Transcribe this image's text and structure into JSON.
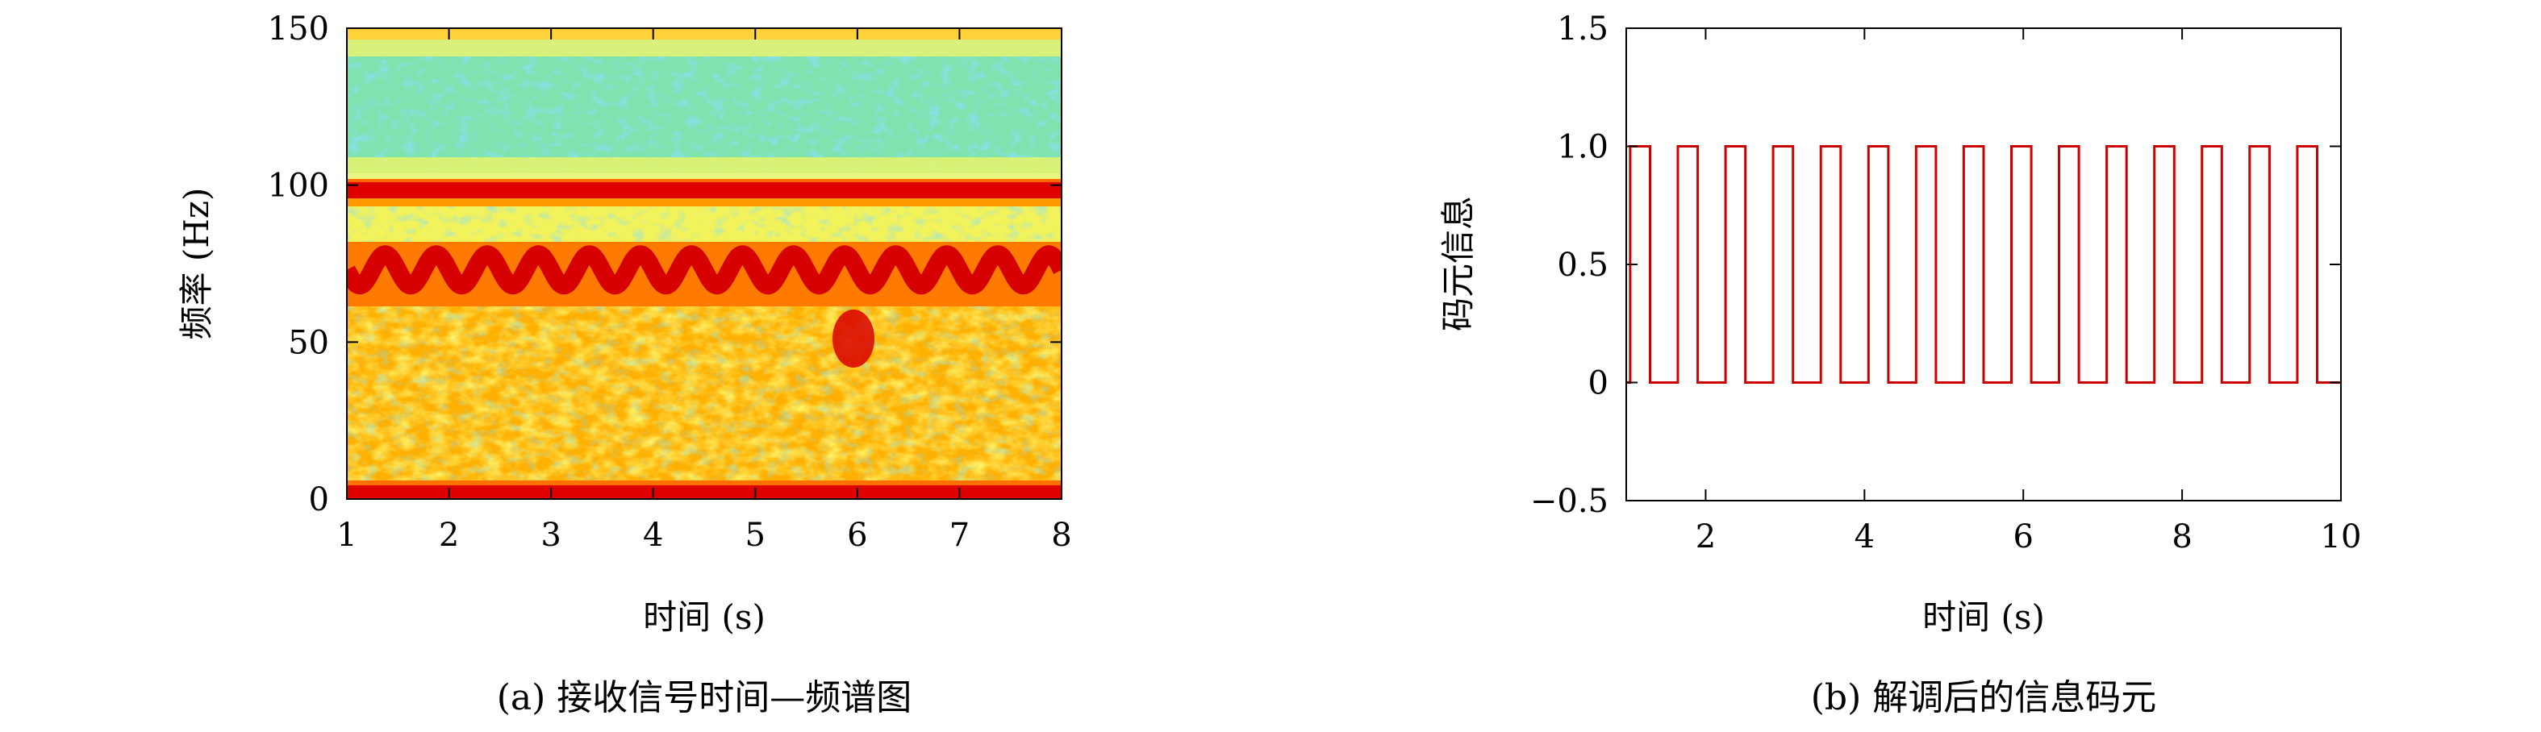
{
  "chart_data": [
    {
      "type": "heatmap",
      "caption": "(a) 接收信号时间—频谱图",
      "xlabel": "时间 (s)",
      "ylabel": "频率 (Hz)",
      "xlim": [
        1,
        8
      ],
      "ylim": [
        0,
        150
      ],
      "xticks": [
        "1",
        "2",
        "3",
        "4",
        "5",
        "6",
        "7",
        "8"
      ],
      "yticks": [
        "0",
        "50",
        "100",
        "150"
      ],
      "features": [
        {
          "kind": "constant tone",
          "frequency_hz": 100
        },
        {
          "kind": "FSK tone band",
          "frequency_hz_low": 68,
          "frequency_hz_high": 78,
          "period_s": 0.5
        },
        {
          "kind": "low-frequency band",
          "frequency_hz": 2
        }
      ],
      "colormap": [
        "#00007f",
        "#0080ff",
        "#40e0d0",
        "#c0ff40",
        "#ffff00",
        "#ff8000",
        "#ff0000",
        "#9a0000"
      ]
    },
    {
      "type": "line",
      "caption": "(b) 解调后的信息码元",
      "xlabel": "时间 (s)",
      "ylabel": "码元信息",
      "xlim": [
        1,
        10
      ],
      "ylim": [
        -0.5,
        1.5
      ],
      "xticks": [
        "2",
        "4",
        "6",
        "8",
        "10"
      ],
      "yticks": [
        "−0.5",
        "0",
        "0.5",
        "1.0",
        "1.5"
      ],
      "line_color": "#cc0000",
      "series": [
        {
          "step": "post",
          "x": [
            1.0,
            1.05,
            1.3,
            1.65,
            1.9,
            2.25,
            2.5,
            2.85,
            3.1,
            3.45,
            3.7,
            4.05,
            4.3,
            4.65,
            4.9,
            5.25,
            5.5,
            5.85,
            6.1,
            6.45,
            6.7,
            7.05,
            7.3,
            7.65,
            7.9,
            8.25,
            8.5,
            8.85,
            9.1,
            9.45,
            9.7,
            10.0
          ],
          "y": [
            0,
            1,
            0,
            1,
            0,
            1,
            0,
            1,
            0,
            1,
            0,
            1,
            0,
            1,
            0,
            1,
            0,
            1,
            0,
            1,
            0,
            1,
            0,
            1,
            0,
            1,
            0,
            1,
            0,
            1,
            0,
            0
          ]
        }
      ]
    }
  ]
}
